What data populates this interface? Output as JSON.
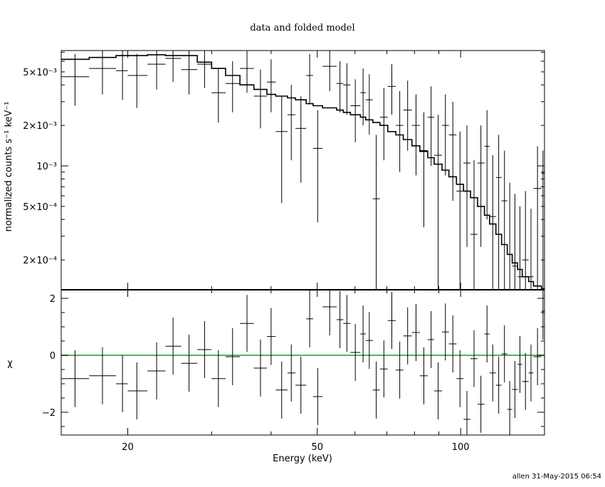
{
  "chart_data": {
    "type": "scatter",
    "title": "data and folded model",
    "footer": "allen 31-May-2015 06:54",
    "xlabel": "Energy (keV)",
    "x_scale": "log",
    "xlim": [
      14.5,
      150
    ],
    "x_ticks": [
      20,
      50,
      100
    ],
    "x_tick_labels": [
      "20",
      "50",
      "100"
    ],
    "top_panel": {
      "ylabel": "normalized counts s⁻¹ keV⁻¹",
      "y_scale": "log",
      "ylim": [
        0.00012,
        0.0072
      ],
      "y_ticks": [
        0.0002,
        0.0005,
        0.001,
        0.002,
        0.005
      ],
      "y_tick_labels": [
        "2×10⁻⁴",
        "5×10⁻⁴",
        "10⁻³",
        "2×10⁻³",
        "5×10⁻³"
      ],
      "data": [
        {
          "x": 15.5,
          "xlo": 14.5,
          "xhi": 16.6,
          "y": 0.0046,
          "ylo": 0.0028,
          "yhi": 0.0068
        },
        {
          "x": 17.7,
          "xlo": 16.6,
          "xhi": 18.9,
          "y": 0.0053,
          "ylo": 0.0034,
          "yhi": 0.0072
        },
        {
          "x": 19.5,
          "xlo": 18.9,
          "xhi": 20.0,
          "y": 0.0051,
          "ylo": 0.0031,
          "yhi": 0.0072
        },
        {
          "x": 20.9,
          "xlo": 20.0,
          "xhi": 22.0,
          "y": 0.0047,
          "ylo": 0.0027,
          "yhi": 0.0068
        },
        {
          "x": 23.0,
          "xlo": 22.0,
          "xhi": 24.0,
          "y": 0.0057,
          "ylo": 0.0037,
          "yhi": 0.0072
        },
        {
          "x": 24.9,
          "xlo": 24.0,
          "xhi": 25.9,
          "y": 0.0063,
          "ylo": 0.0042,
          "yhi": 0.0072
        },
        {
          "x": 26.9,
          "xlo": 25.9,
          "xhi": 28.0,
          "y": 0.0052,
          "ylo": 0.0034,
          "yhi": 0.0072
        },
        {
          "x": 29.0,
          "xlo": 28.0,
          "xhi": 30.0,
          "y": 0.0057,
          "ylo": 0.0038,
          "yhi": 0.0072
        },
        {
          "x": 31.0,
          "xlo": 30.0,
          "xhi": 32.1,
          "y": 0.0035,
          "ylo": 0.0021,
          "yhi": 0.0053
        },
        {
          "x": 33.2,
          "xlo": 32.1,
          "xhi": 34.4,
          "y": 0.0041,
          "ylo": 0.0025,
          "yhi": 0.006
        },
        {
          "x": 35.6,
          "xlo": 34.4,
          "xhi": 36.8,
          "y": 0.0053,
          "ylo": 0.0035,
          "yhi": 0.0072
        },
        {
          "x": 38.0,
          "xlo": 36.8,
          "xhi": 39.2,
          "y": 0.0033,
          "ylo": 0.0019,
          "yhi": 0.0052
        },
        {
          "x": 40.0,
          "xlo": 39.2,
          "xhi": 40.9,
          "y": 0.0042,
          "ylo": 0.0025,
          "yhi": 0.0062
        },
        {
          "x": 42.1,
          "xlo": 40.9,
          "xhi": 43.3,
          "y": 0.0018,
          "ylo": 0.00053,
          "yhi": 0.0033
        },
        {
          "x": 44.1,
          "xlo": 43.3,
          "xhi": 45.0,
          "y": 0.0024,
          "ylo": 0.0011,
          "yhi": 0.004
        },
        {
          "x": 46.2,
          "xlo": 45.0,
          "xhi": 47.4,
          "y": 0.0019,
          "ylo": 0.00075,
          "yhi": 0.0033
        },
        {
          "x": 48.2,
          "xlo": 47.4,
          "xhi": 49.0,
          "y": 0.0047,
          "ylo": 0.0029,
          "yhi": 0.0068
        },
        {
          "x": 50.1,
          "xlo": 49.0,
          "xhi": 51.3,
          "y": 0.00135,
          "ylo": 0.00038,
          "yhi": 0.0026
        },
        {
          "x": 53.1,
          "xlo": 51.3,
          "xhi": 54.9,
          "y": 0.0055,
          "ylo": 0.0036,
          "yhi": 0.0072
        },
        {
          "x": 55.8,
          "xlo": 54.9,
          "xhi": 56.7,
          "y": 0.0041,
          "ylo": 0.0025,
          "yhi": 0.006
        },
        {
          "x": 57.7,
          "xlo": 56.7,
          "xhi": 58.7,
          "y": 0.004,
          "ylo": 0.0024,
          "yhi": 0.0058
        },
        {
          "x": 60.1,
          "xlo": 58.7,
          "xhi": 61.6,
          "y": 0.0028,
          "ylo": 0.0015,
          "yhi": 0.0044
        },
        {
          "x": 62.4,
          "xlo": 61.6,
          "xhi": 63.2,
          "y": 0.0035,
          "ylo": 0.002,
          "yhi": 0.0053
        },
        {
          "x": 64.3,
          "xlo": 63.2,
          "xhi": 65.4,
          "y": 0.0031,
          "ylo": 0.0017,
          "yhi": 0.0048
        },
        {
          "x": 66.5,
          "xlo": 65.4,
          "xhi": 67.7,
          "y": 0.00057,
          "ylo": 0.00012,
          "yhi": 0.0017
        },
        {
          "x": 69.0,
          "xlo": 67.7,
          "xhi": 70.3,
          "y": 0.0023,
          "ylo": 0.0011,
          "yhi": 0.0038
        },
        {
          "x": 71.7,
          "xlo": 70.3,
          "xhi": 73.1,
          "y": 0.0039,
          "ylo": 0.0024,
          "yhi": 0.0057
        },
        {
          "x": 74.5,
          "xlo": 73.1,
          "xhi": 75.8,
          "y": 0.002,
          "ylo": 0.0009,
          "yhi": 0.0036
        },
        {
          "x": 77.4,
          "xlo": 75.8,
          "xhi": 79.0,
          "y": 0.0026,
          "ylo": 0.0013,
          "yhi": 0.0043
        },
        {
          "x": 80.6,
          "xlo": 79.0,
          "xhi": 82.1,
          "y": 0.002,
          "ylo": 0.00085,
          "yhi": 0.0034
        },
        {
          "x": 83.7,
          "xlo": 82.1,
          "xhi": 85.3,
          "y": 0.0013,
          "ylo": 0.00035,
          "yhi": 0.0025
        },
        {
          "x": 86.7,
          "xlo": 85.3,
          "xhi": 88.0,
          "y": 0.0023,
          "ylo": 0.001,
          "yhi": 0.0039
        },
        {
          "x": 89.7,
          "xlo": 88.0,
          "xhi": 91.4,
          "y": 0.0012,
          "ylo": 0.00012,
          "yhi": 0.0024
        },
        {
          "x": 92.9,
          "xlo": 91.4,
          "xhi": 94.5,
          "y": 0.002,
          "ylo": 0.00085,
          "yhi": 0.0034
        },
        {
          "x": 96.3,
          "xlo": 94.5,
          "xhi": 98.0,
          "y": 0.0017,
          "ylo": 0.00055,
          "yhi": 0.003
        },
        {
          "x": 99.7,
          "xlo": 98.0,
          "xhi": 101.4,
          "y": 0.00065,
          "ylo": 0.00012,
          "yhi": 0.0018
        },
        {
          "x": 103.1,
          "xlo": 101.4,
          "xhi": 104.9,
          "y": 0.00105,
          "ylo": 0.00025,
          "yhi": 0.002
        },
        {
          "x": 106.7,
          "xlo": 104.9,
          "xhi": 108.5,
          "y": 0.00031,
          "ylo": 0.00012,
          "yhi": 0.0011
        },
        {
          "x": 110.3,
          "xlo": 108.5,
          "xhi": 112.2,
          "y": 0.00105,
          "ylo": 0.00025,
          "yhi": 0.002
        },
        {
          "x": 113.6,
          "xlo": 112.2,
          "xhi": 115.0,
          "y": 0.0014,
          "ylo": 0.0004,
          "yhi": 0.0026
        },
        {
          "x": 116.8,
          "xlo": 115.0,
          "xhi": 118.6,
          "y": 0.00042,
          "ylo": 0.00012,
          "yhi": 0.0012
        },
        {
          "x": 120.2,
          "xlo": 118.6,
          "xhi": 121.9,
          "y": 0.00082,
          "ylo": 0.00012,
          "yhi": 0.0017
        },
        {
          "x": 123.6,
          "xlo": 121.9,
          "xhi": 125.3,
          "y": 0.00055,
          "ylo": 0.00012,
          "yhi": 0.0013
        },
        {
          "x": 126.8,
          "xlo": 125.3,
          "xhi": 128.3,
          "y": 0.00022,
          "ylo": 0.00012,
          "yhi": 0.00075
        },
        {
          "x": 130.0,
          "xlo": 128.3,
          "xhi": 131.7,
          "y": 0.00018,
          "ylo": 0.00012,
          "yhi": 0.00062
        },
        {
          "x": 133.2,
          "xlo": 131.7,
          "xhi": 134.7,
          "y": 0.00015,
          "ylo": 0.00012,
          "yhi": 0.0005
        },
        {
          "x": 136.8,
          "xlo": 134.7,
          "xhi": 138.9,
          "y": 0.0002,
          "ylo": 0.00012,
          "yhi": 0.00065
        },
        {
          "x": 140.5,
          "xlo": 138.9,
          "xhi": 142.2,
          "y": 0.00015,
          "ylo": 0.00012,
          "yhi": 0.00048
        },
        {
          "x": 145.0,
          "xlo": 142.2,
          "xhi": 147.8,
          "y": 0.00068,
          "ylo": 0.00012,
          "yhi": 0.0014
        },
        {
          "x": 148.9,
          "xlo": 147.8,
          "xhi": 150.0,
          "y": 0.00088,
          "ylo": 0.00012,
          "yhi": 0.0013
        }
      ],
      "model_points": [
        [
          14.5,
          0.0062
        ],
        [
          16.6,
          0.0064
        ],
        [
          18.9,
          0.0066
        ],
        [
          20.0,
          0.0066
        ],
        [
          22.0,
          0.0067
        ],
        [
          24.0,
          0.0066
        ],
        [
          25.9,
          0.0066
        ],
        [
          28.0,
          0.0059
        ],
        [
          30.0,
          0.0053
        ],
        [
          32.1,
          0.0047
        ],
        [
          34.4,
          0.004
        ],
        [
          36.8,
          0.0037
        ],
        [
          39.2,
          0.0034
        ],
        [
          40.9,
          0.0033
        ],
        [
          43.3,
          0.0032
        ],
        [
          45.0,
          0.0031
        ],
        [
          47.4,
          0.0029
        ],
        [
          49.0,
          0.0028
        ],
        [
          51.3,
          0.0027
        ],
        [
          54.9,
          0.0026
        ],
        [
          56.7,
          0.0025
        ],
        [
          58.7,
          0.0024
        ],
        [
          61.6,
          0.0023
        ],
        [
          63.2,
          0.0022
        ],
        [
          65.4,
          0.0021
        ],
        [
          67.7,
          0.002
        ],
        [
          70.3,
          0.0018
        ],
        [
          73.1,
          0.0017
        ],
        [
          75.8,
          0.00157
        ],
        [
          79.0,
          0.00141
        ],
        [
          82.1,
          0.00128
        ],
        [
          85.3,
          0.00115
        ],
        [
          88.0,
          0.00103
        ],
        [
          91.4,
          0.00093
        ],
        [
          94.5,
          0.00083
        ],
        [
          98.0,
          0.00073
        ],
        [
          101.4,
          0.00065
        ],
        [
          104.9,
          0.00058
        ],
        [
          108.5,
          0.0005
        ],
        [
          112.2,
          0.00043
        ],
        [
          115.0,
          0.00037
        ],
        [
          118.6,
          0.00031
        ],
        [
          121.9,
          0.00026
        ],
        [
          125.3,
          0.00022
        ],
        [
          128.3,
          0.00019
        ],
        [
          131.7,
          0.00017
        ],
        [
          134.7,
          0.00015
        ],
        [
          138.9,
          0.000138
        ],
        [
          142.2,
          0.000128
        ],
        [
          147.8,
          0.000122
        ],
        [
          150.0,
          0.000122
        ]
      ]
    },
    "bottom_panel": {
      "ylabel": "χ",
      "y_scale": "linear",
      "ylim": [
        -2.8,
        2.3
      ],
      "y_ticks": [
        -2,
        0,
        2
      ],
      "y_tick_labels": [
        "−2",
        "0",
        "2"
      ],
      "zero_line_color": "#33cc33",
      "residuals": [
        {
          "x": 15.5,
          "xlo": 14.5,
          "xhi": 16.6,
          "y": -0.82,
          "ylo": -1.82,
          "yhi": 0.18
        },
        {
          "x": 17.7,
          "xlo": 16.6,
          "xhi": 18.9,
          "y": -0.72,
          "ylo": -1.72,
          "yhi": 0.28
        },
        {
          "x": 19.5,
          "xlo": 18.9,
          "xhi": 20.0,
          "y": -1.0,
          "ylo": -2.0,
          "yhi": 0.0
        },
        {
          "x": 20.9,
          "xlo": 20.0,
          "xhi": 22.0,
          "y": -1.25,
          "ylo": -2.25,
          "yhi": -0.25
        },
        {
          "x": 23.0,
          "xlo": 22.0,
          "xhi": 24.0,
          "y": -0.55,
          "ylo": -1.55,
          "yhi": 0.45
        },
        {
          "x": 24.9,
          "xlo": 24.0,
          "xhi": 25.9,
          "y": 0.32,
          "ylo": -0.68,
          "yhi": 1.32
        },
        {
          "x": 26.9,
          "xlo": 25.9,
          "xhi": 28.0,
          "y": -0.28,
          "ylo": -1.28,
          "yhi": 0.72
        },
        {
          "x": 29.0,
          "xlo": 28.0,
          "xhi": 30.0,
          "y": 0.2,
          "ylo": -0.8,
          "yhi": 1.2
        },
        {
          "x": 31.0,
          "xlo": 30.0,
          "xhi": 32.1,
          "y": -0.82,
          "ylo": -1.82,
          "yhi": 0.18
        },
        {
          "x": 33.2,
          "xlo": 32.1,
          "xhi": 34.4,
          "y": -0.05,
          "ylo": -1.05,
          "yhi": 0.95
        },
        {
          "x": 35.6,
          "xlo": 34.4,
          "xhi": 36.8,
          "y": 1.12,
          "ylo": 0.12,
          "yhi": 2.12
        },
        {
          "x": 38.0,
          "xlo": 36.8,
          "xhi": 39.2,
          "y": -0.45,
          "ylo": -1.45,
          "yhi": 0.55
        },
        {
          "x": 40.0,
          "xlo": 39.2,
          "xhi": 40.9,
          "y": 0.66,
          "ylo": -0.34,
          "yhi": 1.66
        },
        {
          "x": 42.1,
          "xlo": 40.9,
          "xhi": 43.3,
          "y": -1.22,
          "ylo": -2.22,
          "yhi": -0.22
        },
        {
          "x": 44.1,
          "xlo": 43.3,
          "xhi": 45.0,
          "y": -0.62,
          "ylo": -1.62,
          "yhi": 0.38
        },
        {
          "x": 46.2,
          "xlo": 45.0,
          "xhi": 47.4,
          "y": -1.05,
          "ylo": -2.05,
          "yhi": -0.05
        },
        {
          "x": 48.2,
          "xlo": 47.4,
          "xhi": 49.0,
          "y": 1.28,
          "ylo": 0.28,
          "yhi": 2.28
        },
        {
          "x": 50.1,
          "xlo": 49.0,
          "xhi": 51.3,
          "y": -1.45,
          "ylo": -2.45,
          "yhi": -0.45
        },
        {
          "x": 53.1,
          "xlo": 51.3,
          "xhi": 54.9,
          "y": 1.7,
          "ylo": 0.7,
          "yhi": 2.3
        },
        {
          "x": 55.8,
          "xlo": 54.9,
          "xhi": 56.7,
          "y": 1.25,
          "ylo": 0.25,
          "yhi": 2.25
        },
        {
          "x": 57.7,
          "xlo": 56.7,
          "xhi": 58.7,
          "y": 1.12,
          "ylo": 0.12,
          "yhi": 2.12
        },
        {
          "x": 60.1,
          "xlo": 58.7,
          "xhi": 61.6,
          "y": 0.1,
          "ylo": -0.9,
          "yhi": 1.1
        },
        {
          "x": 62.4,
          "xlo": 61.6,
          "xhi": 63.2,
          "y": 0.75,
          "ylo": -0.25,
          "yhi": 1.75
        },
        {
          "x": 64.3,
          "xlo": 63.2,
          "xhi": 65.4,
          "y": 0.52,
          "ylo": -0.48,
          "yhi": 1.52
        },
        {
          "x": 66.5,
          "xlo": 65.4,
          "xhi": 67.7,
          "y": -1.22,
          "ylo": -2.22,
          "yhi": -0.22
        },
        {
          "x": 69.0,
          "xlo": 67.7,
          "xhi": 70.3,
          "y": -0.48,
          "ylo": -1.48,
          "yhi": 0.52
        },
        {
          "x": 71.7,
          "xlo": 70.3,
          "xhi": 73.1,
          "y": 1.22,
          "ylo": 0.22,
          "yhi": 2.22
        },
        {
          "x": 74.5,
          "xlo": 73.1,
          "xhi": 75.8,
          "y": -0.52,
          "ylo": -1.52,
          "yhi": 0.48
        },
        {
          "x": 77.4,
          "xlo": 75.8,
          "xhi": 79.0,
          "y": 0.68,
          "ylo": -0.32,
          "yhi": 1.68
        },
        {
          "x": 80.6,
          "xlo": 79.0,
          "xhi": 82.1,
          "y": 0.8,
          "ylo": -0.2,
          "yhi": 1.8
        },
        {
          "x": 83.7,
          "xlo": 82.1,
          "xhi": 85.3,
          "y": -0.72,
          "ylo": -1.72,
          "yhi": 0.28
        },
        {
          "x": 86.7,
          "xlo": 85.3,
          "xhi": 88.0,
          "y": 0.55,
          "ylo": -0.45,
          "yhi": 1.55
        },
        {
          "x": 89.7,
          "xlo": 88.0,
          "xhi": 91.4,
          "y": -1.25,
          "ylo": -2.25,
          "yhi": -0.25
        },
        {
          "x": 92.9,
          "xlo": 91.4,
          "xhi": 94.5,
          "y": 0.82,
          "ylo": -0.18,
          "yhi": 1.82
        },
        {
          "x": 96.3,
          "xlo": 94.5,
          "xhi": 98.0,
          "y": 0.4,
          "ylo": -0.6,
          "yhi": 1.4
        },
        {
          "x": 99.7,
          "xlo": 98.0,
          "xhi": 101.4,
          "y": -0.82,
          "ylo": -1.82,
          "yhi": 0.18
        },
        {
          "x": 103.1,
          "xlo": 101.4,
          "xhi": 104.9,
          "y": -2.25,
          "ylo": -2.8,
          "yhi": -1.25
        },
        {
          "x": 106.7,
          "xlo": 104.9,
          "xhi": 108.5,
          "y": -0.12,
          "ylo": -1.12,
          "yhi": 0.88
        },
        {
          "x": 110.3,
          "xlo": 108.5,
          "xhi": 112.2,
          "y": -1.72,
          "ylo": -2.72,
          "yhi": -0.72
        },
        {
          "x": 113.6,
          "xlo": 112.2,
          "xhi": 115.0,
          "y": 0.75,
          "ylo": -0.25,
          "yhi": 1.75
        },
        {
          "x": 116.8,
          "xlo": 115.0,
          "xhi": 118.6,
          "y": -0.62,
          "ylo": -1.62,
          "yhi": 0.38
        },
        {
          "x": 120.2,
          "xlo": 118.6,
          "xhi": 121.9,
          "y": -1.05,
          "ylo": -2.05,
          "yhi": -0.05
        },
        {
          "x": 123.6,
          "xlo": 121.9,
          "xhi": 125.3,
          "y": 0.05,
          "ylo": -0.95,
          "yhi": 1.05
        },
        {
          "x": 126.8,
          "xlo": 125.3,
          "xhi": 128.3,
          "y": -1.9,
          "ylo": -2.8,
          "yhi": -0.9
        },
        {
          "x": 130.0,
          "xlo": 128.3,
          "xhi": 131.7,
          "y": -1.2,
          "ylo": -2.2,
          "yhi": -0.2
        },
        {
          "x": 133.2,
          "xlo": 131.7,
          "xhi": 134.7,
          "y": -0.32,
          "ylo": -1.32,
          "yhi": 0.68
        },
        {
          "x": 136.8,
          "xlo": 134.7,
          "xhi": 138.9,
          "y": -0.92,
          "ylo": -1.92,
          "yhi": 0.08
        },
        {
          "x": 140.5,
          "xlo": 138.9,
          "xhi": 142.2,
          "y": -0.62,
          "ylo": -1.62,
          "yhi": 0.38
        },
        {
          "x": 145.0,
          "xlo": 142.2,
          "xhi": 147.8,
          "y": -0.05,
          "ylo": -1.05,
          "yhi": 0.95
        },
        {
          "x": 148.9,
          "xlo": 147.8,
          "xhi": 150.0,
          "y": 1.55,
          "ylo": 0.55,
          "yhi": 2.3
        }
      ]
    }
  }
}
